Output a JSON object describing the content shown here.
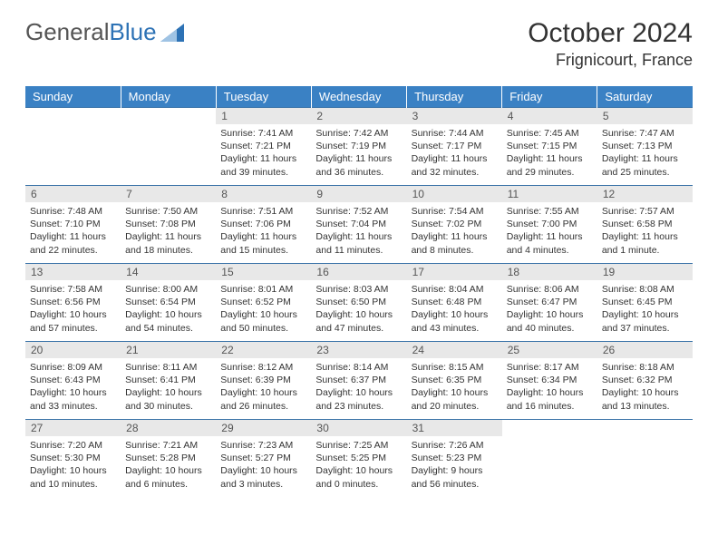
{
  "logo": {
    "part1": "General",
    "part2": "Blue"
  },
  "title": "October 2024",
  "location": "Frignicourt, France",
  "weekday_labels": [
    "Sunday",
    "Monday",
    "Tuesday",
    "Wednesday",
    "Thursday",
    "Friday",
    "Saturday"
  ],
  "colors": {
    "header_bg": "#3a81c4",
    "header_text": "#ffffff",
    "daynum_bg": "#e8e8e8",
    "row_border": "#3a73a8",
    "logo_blue": "#2d72b5",
    "text": "#333333"
  },
  "typography": {
    "month_title_pt": 30,
    "location_pt": 18,
    "weekday_pt": 13,
    "daynum_pt": 12,
    "body_pt": 10.5
  },
  "grid": {
    "columns": 7,
    "rows": 5,
    "leading_blanks": 2
  },
  "days": [
    {
      "n": "1",
      "sunrise": "7:41 AM",
      "sunset": "7:21 PM",
      "daylight": "11 hours and 39 minutes."
    },
    {
      "n": "2",
      "sunrise": "7:42 AM",
      "sunset": "7:19 PM",
      "daylight": "11 hours and 36 minutes."
    },
    {
      "n": "3",
      "sunrise": "7:44 AM",
      "sunset": "7:17 PM",
      "daylight": "11 hours and 32 minutes."
    },
    {
      "n": "4",
      "sunrise": "7:45 AM",
      "sunset": "7:15 PM",
      "daylight": "11 hours and 29 minutes."
    },
    {
      "n": "5",
      "sunrise": "7:47 AM",
      "sunset": "7:13 PM",
      "daylight": "11 hours and 25 minutes."
    },
    {
      "n": "6",
      "sunrise": "7:48 AM",
      "sunset": "7:10 PM",
      "daylight": "11 hours and 22 minutes."
    },
    {
      "n": "7",
      "sunrise": "7:50 AM",
      "sunset": "7:08 PM",
      "daylight": "11 hours and 18 minutes."
    },
    {
      "n": "8",
      "sunrise": "7:51 AM",
      "sunset": "7:06 PM",
      "daylight": "11 hours and 15 minutes."
    },
    {
      "n": "9",
      "sunrise": "7:52 AM",
      "sunset": "7:04 PM",
      "daylight": "11 hours and 11 minutes."
    },
    {
      "n": "10",
      "sunrise": "7:54 AM",
      "sunset": "7:02 PM",
      "daylight": "11 hours and 8 minutes."
    },
    {
      "n": "11",
      "sunrise": "7:55 AM",
      "sunset": "7:00 PM",
      "daylight": "11 hours and 4 minutes."
    },
    {
      "n": "12",
      "sunrise": "7:57 AM",
      "sunset": "6:58 PM",
      "daylight": "11 hours and 1 minute."
    },
    {
      "n": "13",
      "sunrise": "7:58 AM",
      "sunset": "6:56 PM",
      "daylight": "10 hours and 57 minutes."
    },
    {
      "n": "14",
      "sunrise": "8:00 AM",
      "sunset": "6:54 PM",
      "daylight": "10 hours and 54 minutes."
    },
    {
      "n": "15",
      "sunrise": "8:01 AM",
      "sunset": "6:52 PM",
      "daylight": "10 hours and 50 minutes."
    },
    {
      "n": "16",
      "sunrise": "8:03 AM",
      "sunset": "6:50 PM",
      "daylight": "10 hours and 47 minutes."
    },
    {
      "n": "17",
      "sunrise": "8:04 AM",
      "sunset": "6:48 PM",
      "daylight": "10 hours and 43 minutes."
    },
    {
      "n": "18",
      "sunrise": "8:06 AM",
      "sunset": "6:47 PM",
      "daylight": "10 hours and 40 minutes."
    },
    {
      "n": "19",
      "sunrise": "8:08 AM",
      "sunset": "6:45 PM",
      "daylight": "10 hours and 37 minutes."
    },
    {
      "n": "20",
      "sunrise": "8:09 AM",
      "sunset": "6:43 PM",
      "daylight": "10 hours and 33 minutes."
    },
    {
      "n": "21",
      "sunrise": "8:11 AM",
      "sunset": "6:41 PM",
      "daylight": "10 hours and 30 minutes."
    },
    {
      "n": "22",
      "sunrise": "8:12 AM",
      "sunset": "6:39 PM",
      "daylight": "10 hours and 26 minutes."
    },
    {
      "n": "23",
      "sunrise": "8:14 AM",
      "sunset": "6:37 PM",
      "daylight": "10 hours and 23 minutes."
    },
    {
      "n": "24",
      "sunrise": "8:15 AM",
      "sunset": "6:35 PM",
      "daylight": "10 hours and 20 minutes."
    },
    {
      "n": "25",
      "sunrise": "8:17 AM",
      "sunset": "6:34 PM",
      "daylight": "10 hours and 16 minutes."
    },
    {
      "n": "26",
      "sunrise": "8:18 AM",
      "sunset": "6:32 PM",
      "daylight": "10 hours and 13 minutes."
    },
    {
      "n": "27",
      "sunrise": "7:20 AM",
      "sunset": "5:30 PM",
      "daylight": "10 hours and 10 minutes."
    },
    {
      "n": "28",
      "sunrise": "7:21 AM",
      "sunset": "5:28 PM",
      "daylight": "10 hours and 6 minutes."
    },
    {
      "n": "29",
      "sunrise": "7:23 AM",
      "sunset": "5:27 PM",
      "daylight": "10 hours and 3 minutes."
    },
    {
      "n": "30",
      "sunrise": "7:25 AM",
      "sunset": "5:25 PM",
      "daylight": "10 hours and 0 minutes."
    },
    {
      "n": "31",
      "sunrise": "7:26 AM",
      "sunset": "5:23 PM",
      "daylight": "9 hours and 56 minutes."
    }
  ],
  "labels": {
    "sunrise": "Sunrise:",
    "sunset": "Sunset:",
    "daylight": "Daylight:"
  }
}
